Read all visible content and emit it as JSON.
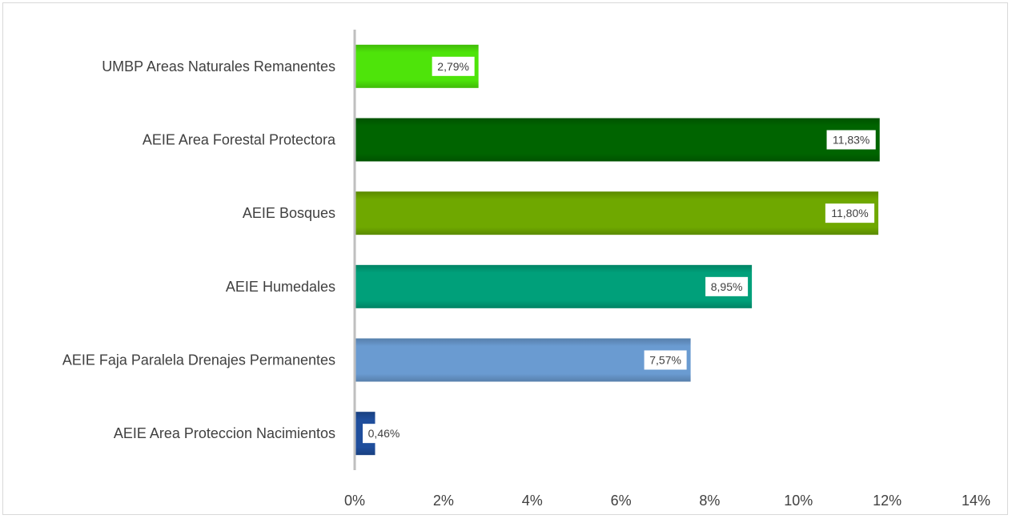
{
  "chart_data": {
    "type": "bar",
    "orientation": "horizontal",
    "title": "",
    "xlabel": "",
    "ylabel": "",
    "xlim": [
      0,
      14
    ],
    "grid": false,
    "legend": "none",
    "categories": [
      "UMBP Areas Naturales Remanentes",
      "AEIE Area Forestal Protectora",
      "AEIE Bosques",
      "AEIE Humedales",
      "AEIE Faja Paralela Drenajes Permanentes",
      "AEIE Area Proteccion Nacimientos"
    ],
    "values": [
      2.79,
      11.83,
      11.8,
      8.95,
      7.57,
      0.46
    ],
    "data_labels": [
      "2,79%",
      "11,83%",
      "11,80%",
      "8,95%",
      "7,57%",
      "0,46%"
    ],
    "bar_colors": [
      "#4ee40a",
      "#006400",
      "#6fa800",
      "#00a07a",
      "#6a9bd1",
      "#1f4e9c"
    ],
    "x_ticks": [
      0,
      2,
      4,
      6,
      8,
      10,
      12,
      14
    ],
    "x_tick_labels": [
      "0%",
      "2%",
      "4%",
      "6%",
      "8%",
      "10%",
      "12%",
      "14%"
    ]
  }
}
